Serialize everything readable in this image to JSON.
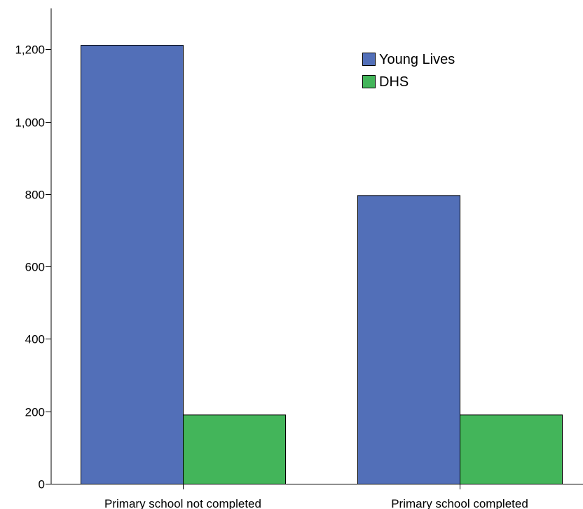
{
  "chart_data": {
    "type": "bar",
    "categories": [
      "Primary school not completed",
      "Primary school completed"
    ],
    "series": [
      {
        "name": "Young Lives",
        "values": [
          1212,
          797
        ],
        "color": "#526fb8"
      },
      {
        "name": "DHS",
        "values": [
          191,
          191
        ],
        "color": "#43b55a"
      }
    ],
    "ylim": [
      0,
      1300
    ],
    "yticks": [
      0,
      200,
      400,
      600,
      800,
      1000,
      1200
    ],
    "ytick_labels": [
      "0",
      "200",
      "400",
      "600",
      "800",
      "1,000",
      "1,200"
    ],
    "title": "",
    "xlabel": "",
    "ylabel": "",
    "grid": false,
    "legend_position": "top-right"
  }
}
